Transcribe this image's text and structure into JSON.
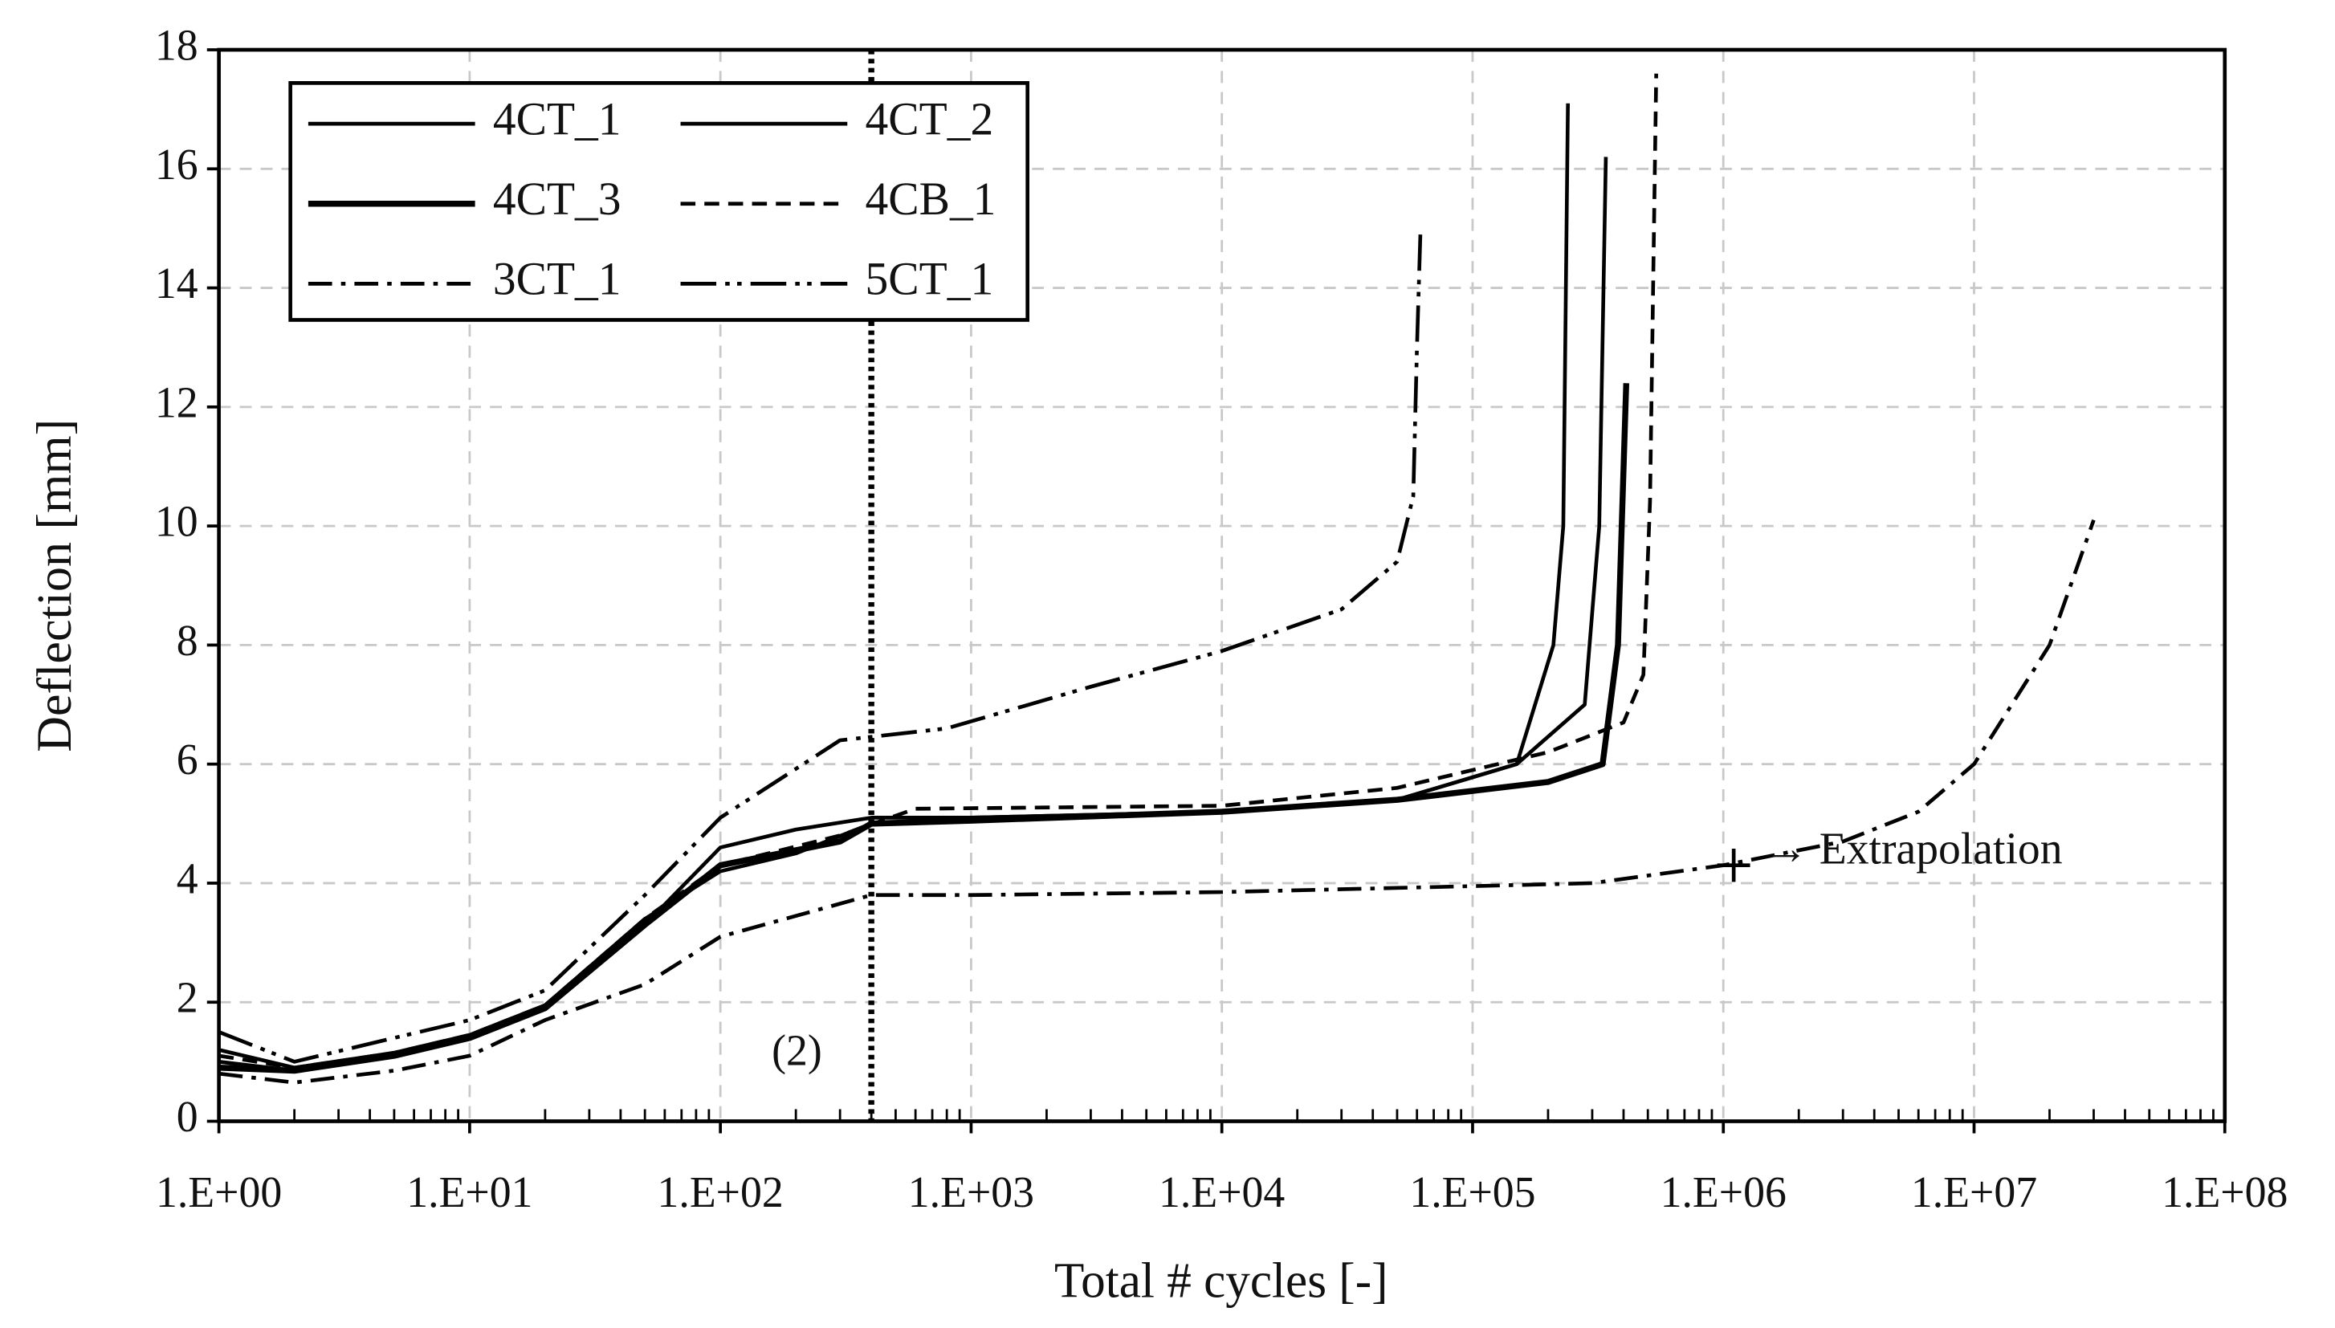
{
  "chart_data": {
    "type": "line",
    "xlabel": "Total # cycles [-]",
    "ylabel": "Deflection [mm]",
    "xscale": "log",
    "grid": true,
    "minor_ticks": true,
    "legend": "upper left",
    "xlim": [
      1,
      100000000
    ],
    "ylim": [
      0,
      18
    ],
    "xticks": [
      {
        "value": 1,
        "label": "1.E+00"
      },
      {
        "value": 10,
        "label": "1.E+01"
      },
      {
        "value": 100,
        "label": "1.E+02"
      },
      {
        "value": 1000,
        "label": "1.E+03"
      },
      {
        "value": 10000,
        "label": "1.E+04"
      },
      {
        "value": 100000,
        "label": "1.E+05"
      },
      {
        "value": 1000000,
        "label": "1.E+06"
      },
      {
        "value": 10000000,
        "label": "1.E+07"
      },
      {
        "value": 100000000,
        "label": "1.E+08"
      }
    ],
    "yticks": [
      0,
      2,
      4,
      6,
      8,
      10,
      12,
      14,
      16,
      18
    ],
    "vline": {
      "x": 400,
      "label": "(2)",
      "color": "#000000"
    },
    "annotation": {
      "x": 1100000,
      "y": 4.3,
      "text": "→ Extrapolation"
    },
    "series": [
      {
        "name": "4CT_1",
        "color": "#000000",
        "linestyle": "solid",
        "linewidth": 2.5,
        "x": [
          1,
          2,
          5,
          10,
          20,
          50,
          100,
          200,
          400,
          1000,
          10000,
          50000,
          150000,
          210000,
          230000,
          240000
        ],
        "values": [
          1.0,
          0.85,
          1.1,
          1.4,
          1.9,
          3.3,
          4.6,
          4.9,
          5.1,
          5.1,
          5.2,
          5.4,
          6.0,
          8.0,
          10.0,
          17.1
        ]
      },
      {
        "name": "4CT_2",
        "color": "#000000",
        "linestyle": "solid",
        "linewidth": 2.5,
        "x": [
          1,
          2,
          5,
          10,
          20,
          50,
          100,
          200,
          400,
          1000,
          10000,
          50000,
          150000,
          280000,
          320000,
          340000
        ],
        "values": [
          1.2,
          0.9,
          1.15,
          1.45,
          1.95,
          3.4,
          4.2,
          4.5,
          5.0,
          5.1,
          5.2,
          5.4,
          6.0,
          7.0,
          10.0,
          16.2
        ]
      },
      {
        "name": "4CT_3",
        "color": "#000000",
        "linestyle": "solid",
        "linewidth": 4,
        "x": [
          1,
          2,
          5,
          10,
          20,
          50,
          100,
          300,
          400,
          1000,
          10000,
          50000,
          200000,
          330000,
          380000,
          410000
        ],
        "values": [
          0.9,
          0.85,
          1.1,
          1.4,
          1.9,
          3.3,
          4.3,
          4.7,
          5.0,
          5.05,
          5.2,
          5.4,
          5.7,
          6.0,
          8.0,
          12.4
        ]
      },
      {
        "name": "4CB_1",
        "color": "#000000",
        "linestyle": "dashed",
        "linewidth": 2.5,
        "x": [
          1,
          2,
          5,
          10,
          20,
          50,
          100,
          300,
          600,
          10000,
          50000,
          200000,
          400000,
          480000,
          510000,
          540000
        ],
        "values": [
          1.1,
          0.9,
          1.15,
          1.45,
          1.95,
          3.4,
          4.3,
          4.8,
          5.25,
          5.3,
          5.6,
          6.2,
          6.7,
          7.5,
          10.4,
          17.6
        ]
      },
      {
        "name": "3CT_1",
        "color": "#000000",
        "linestyle": "dashdot",
        "linewidth": 2.5,
        "x": [
          1,
          2,
          5,
          10,
          20,
          50,
          100,
          400,
          1000,
          10000,
          100000,
          300000,
          1000000,
          3000000,
          6000000,
          10000000,
          20000000,
          30000000
        ],
        "values": [
          0.8,
          0.65,
          0.85,
          1.1,
          1.7,
          2.3,
          3.1,
          3.8,
          3.8,
          3.85,
          3.95,
          4.0,
          4.3,
          4.7,
          5.2,
          6.0,
          8.0,
          10.1
        ]
      },
      {
        "name": "5CT_1",
        "color": "#000000",
        "linestyle": "dashdotdot",
        "linewidth": 2.5,
        "x": [
          1,
          2,
          5,
          10,
          20,
          50,
          100,
          300,
          800,
          3000,
          10000,
          30000,
          50000,
          58000,
          60000,
          62000
        ],
        "values": [
          1.5,
          1.0,
          1.4,
          1.7,
          2.2,
          3.8,
          5.1,
          6.4,
          6.6,
          7.3,
          7.9,
          8.6,
          9.4,
          10.5,
          13.0,
          15.0
        ]
      }
    ]
  }
}
